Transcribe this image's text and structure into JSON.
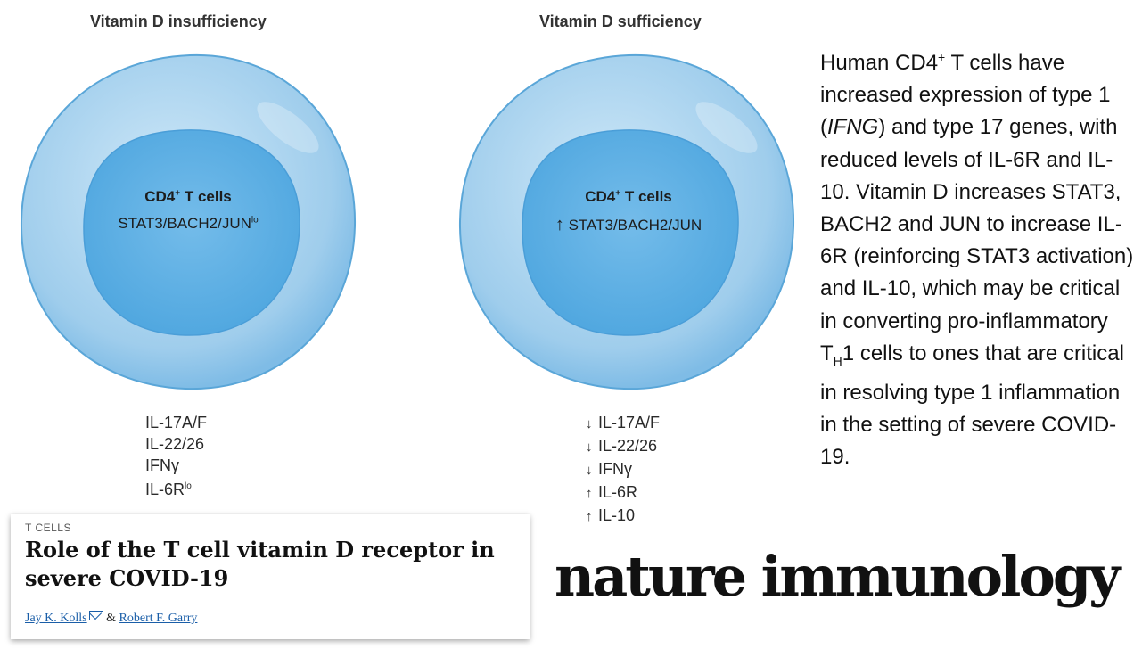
{
  "panels": {
    "left": {
      "title": "Vitamin D insufficiency",
      "cell_title": "CD4",
      "cell_title_sup": "+",
      "cell_title_rest": " T cells",
      "cell_sub": "STAT3/BACH2/JUN",
      "cell_sub_sup": "lo",
      "markers": [
        {
          "arrow": "",
          "label": "IL-17A/F",
          "sup": ""
        },
        {
          "arrow": "",
          "label": "IL-22/26",
          "sup": ""
        },
        {
          "arrow": "",
          "label": "IFNγ",
          "sup": ""
        },
        {
          "arrow": "",
          "label": "IL-6R",
          "sup": "lo"
        }
      ]
    },
    "right": {
      "title": "Vitamin D sufficiency",
      "cell_title": "CD4",
      "cell_title_sup": "+",
      "cell_title_rest": " T cells",
      "cell_arrow": "↑",
      "cell_sub": "STAT3/BACH2/JUN",
      "markers": [
        {
          "arrow": "↓",
          "label": "IL-17A/F",
          "sup": ""
        },
        {
          "arrow": "↓",
          "label": "IL-22/26",
          "sup": ""
        },
        {
          "arrow": "↓",
          "label": "IFNγ",
          "sup": ""
        },
        {
          "arrow": "↑",
          "label": "IL-6R",
          "sup": ""
        },
        {
          "arrow": "↑",
          "label": "IL-10",
          "sup": ""
        }
      ]
    }
  },
  "description": {
    "p1": "Human CD4",
    "sup1": "+",
    "p2": " T cells have increased expression of type 1 (",
    "italic": "IFNG",
    "p3": ") and type 17 genes, with reduced levels of IL-6R and IL-10. Vitamin D increases STAT3, BACH2 and JUN to increase IL-6R (reinforcing STAT3 activation) and IL-10, which may be critical in converting pro-inflammatory T",
    "sub": "H",
    "p4": "1 cells to ones that are critical in resolving type 1 inflammation in the setting of severe COVID-19."
  },
  "article": {
    "section": "T CELLS",
    "title": "Role of the T cell vitamin D receptor in severe COVID-19",
    "author1": "Jay K. Kolls",
    "separator": " & ",
    "author2": "Robert F. Garry"
  },
  "journal": "nature immunology",
  "colors": {
    "cell_outer": "#a8d4ef",
    "cell_border": "#5aa6d8",
    "nucleus": "#5ab0e4"
  }
}
